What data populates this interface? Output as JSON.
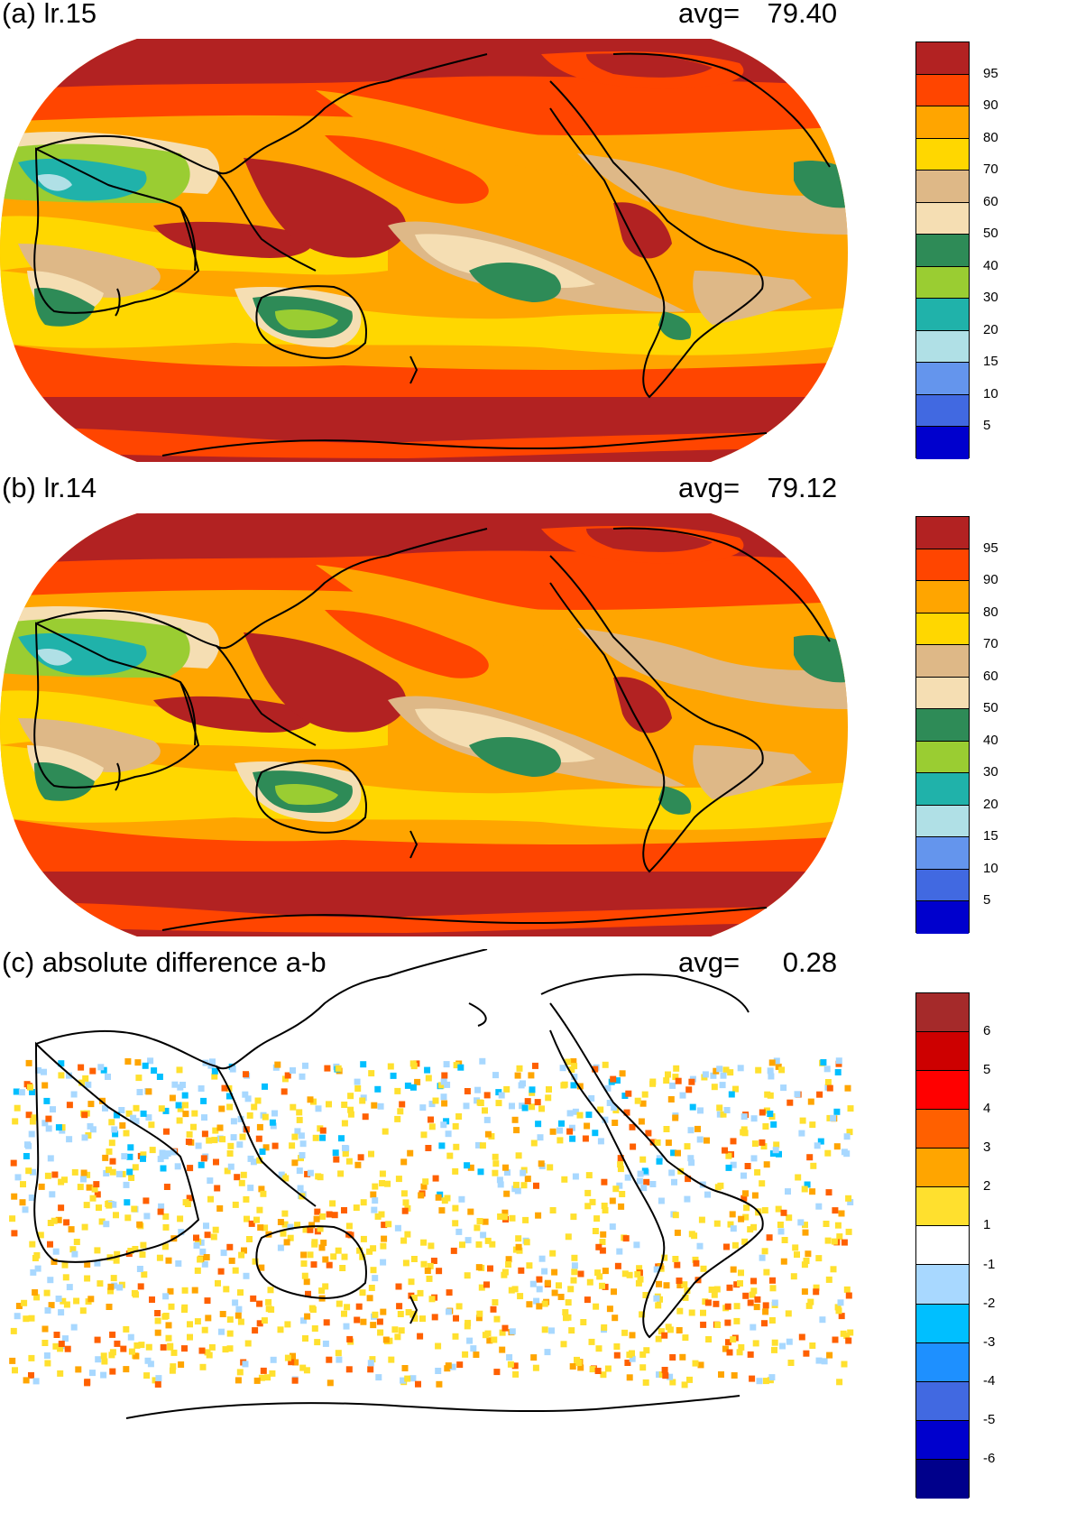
{
  "panels": [
    {
      "title": "(a) lr.15",
      "avg_label": "avg=",
      "avg_value": "79.40",
      "colorbar": {
        "colors": [
          "#b22222",
          "#ff4500",
          "#ffa500",
          "#ffd700",
          "#deb887",
          "#f5deb3",
          "#2e8b57",
          "#9acd32",
          "#20b2aa",
          "#b0e0e6",
          "#6495ed",
          "#4169e1",
          "#0000cd"
        ],
        "ticks": [
          "95",
          "90",
          "80",
          "70",
          "60",
          "50",
          "40",
          "30",
          "20",
          "15",
          "10",
          "5"
        ]
      }
    },
    {
      "title": "(b) lr.14",
      "avg_label": "avg=",
      "avg_value": "79.12",
      "colorbar": {
        "colors": [
          "#b22222",
          "#ff4500",
          "#ffa500",
          "#ffd700",
          "#deb887",
          "#f5deb3",
          "#2e8b57",
          "#9acd32",
          "#20b2aa",
          "#b0e0e6",
          "#6495ed",
          "#4169e1",
          "#0000cd"
        ],
        "ticks": [
          "95",
          "90",
          "80",
          "70",
          "60",
          "50",
          "40",
          "30",
          "20",
          "15",
          "10",
          "5"
        ]
      }
    },
    {
      "title": "(c) absolute difference a-b",
      "avg_label": "avg=",
      "avg_value": "0.28",
      "colorbar": {
        "colors": [
          "#a52a2a",
          "#cd0000",
          "#ff0000",
          "#ff6000",
          "#ffa500",
          "#ffe02e",
          "#ffffff",
          "#a8d8ff",
          "#00bfff",
          "#1e90ff",
          "#4169e1",
          "#0000cd",
          "#00008b"
        ],
        "ticks": [
          "6",
          "5",
          "4",
          "3",
          "2",
          "1",
          "-1",
          "-2",
          "-3",
          "-4",
          "-5",
          "-6"
        ]
      }
    }
  ]
}
